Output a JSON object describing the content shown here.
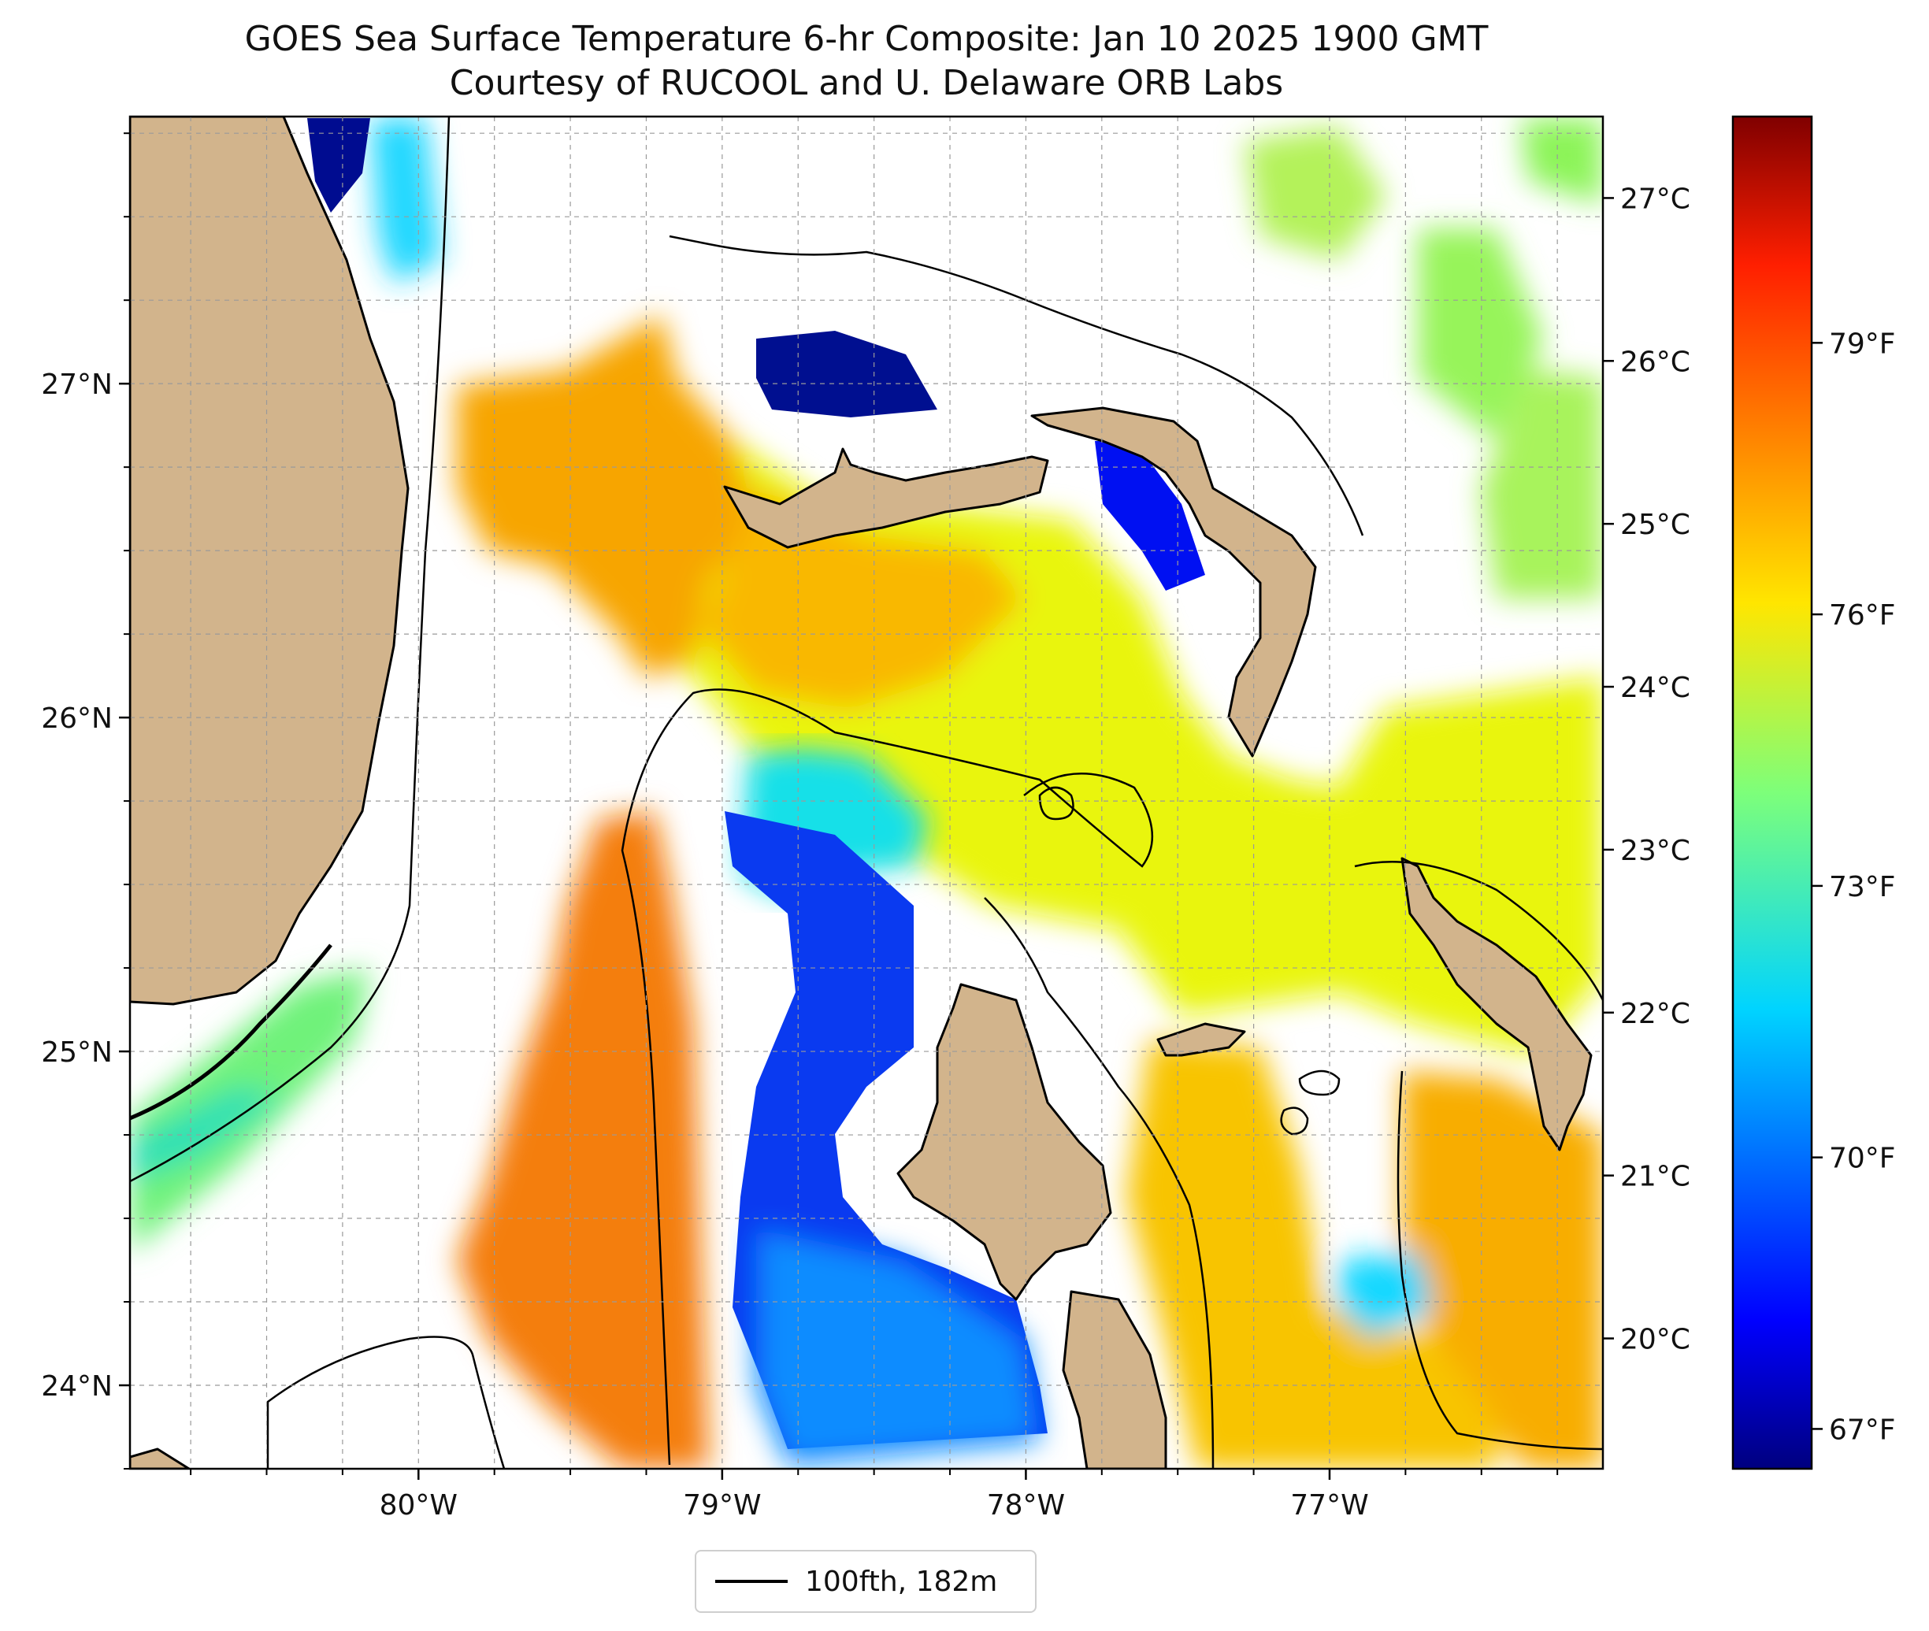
{
  "title": {
    "line1": "GOES Sea Surface Temperature 6-hr Composite: Jan 10 2025 1900 GMT",
    "line2": "Courtesy of RUCOOL and U. Delaware ORB Labs"
  },
  "map": {
    "projection": "PlateCarree",
    "lon_range": [
      -80.95,
      -76.1
    ],
    "lat_range": [
      23.75,
      27.8
    ],
    "gridlines": true,
    "land_color": "#d2b48c",
    "no_data_color": "#ffffff",
    "lon_ticks": [
      {
        "value": -80,
        "label": "80°W"
      },
      {
        "value": -79,
        "label": "79°W"
      },
      {
        "value": -78,
        "label": "78°W"
      },
      {
        "value": -77,
        "label": "77°W"
      }
    ],
    "lat_ticks": [
      {
        "value": 27,
        "label": "27°N"
      },
      {
        "value": 26,
        "label": "26°N"
      },
      {
        "value": 25,
        "label": "25°N"
      },
      {
        "value": 24,
        "label": "24°N"
      }
    ],
    "regions": {
      "florida": "land",
      "bahamas_grand_bahama": "land",
      "bahamas_abaco": "land",
      "bahamas_andros": "land",
      "bahamas_eleuthera": "land",
      "florida_current": "warm",
      "tongue_of_the_ocean": "cold",
      "little_bahama_bank_cold_patch": "coldest"
    }
  },
  "colorbar": {
    "cmap": "jet",
    "celsius_ticks": [
      {
        "value": 27,
        "label": "27°C"
      },
      {
        "value": 26,
        "label": "26°C"
      },
      {
        "value": 25,
        "label": "25°C"
      },
      {
        "value": 24,
        "label": "24°C"
      },
      {
        "value": 23,
        "label": "23°C"
      },
      {
        "value": 22,
        "label": "22°C"
      },
      {
        "value": 21,
        "label": "21°C"
      },
      {
        "value": 20,
        "label": "20°C"
      }
    ],
    "fahrenheit_ticks": [
      {
        "value": 79,
        "label": "79°F"
      },
      {
        "value": 76,
        "label": "76°F"
      },
      {
        "value": 73,
        "label": "73°F"
      },
      {
        "value": 70,
        "label": "70°F"
      },
      {
        "value": 67,
        "label": "67°F"
      }
    ]
  },
  "legend": {
    "label": "100fth, 182m",
    "line_color": "#000000"
  }
}
